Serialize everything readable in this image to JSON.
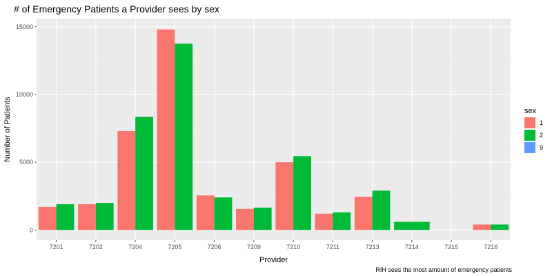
{
  "chart_data": {
    "type": "bar",
    "title": "# of Emergency Patients a Provider sees by sex",
    "xlabel": "Provider",
    "ylabel": "Number of Patients",
    "caption": "RIH sees the most amount of emergency patients",
    "categories": [
      "7201",
      "7202",
      "7204",
      "7205",
      "7206",
      "7209",
      "7210",
      "7211",
      "7213",
      "7214",
      "7215",
      "7216"
    ],
    "series": [
      {
        "name": "1",
        "color": "#F8766D",
        "values": [
          1700,
          1900,
          7300,
          14800,
          2550,
          1550,
          5000,
          1200,
          2450,
          0,
          0,
          400
        ]
      },
      {
        "name": "2",
        "color": "#00BA38",
        "values": [
          1900,
          2000,
          8350,
          13750,
          2400,
          1650,
          5450,
          1300,
          2900,
          600,
          0,
          400
        ]
      },
      {
        "name": "9",
        "color": "#619CFF",
        "values": [
          0,
          0,
          0,
          0,
          0,
          0,
          0,
          0,
          0,
          0,
          0,
          0
        ]
      }
    ],
    "yticks": [
      0,
      5000,
      10000,
      15000
    ],
    "ylim": [
      -750,
      15600
    ],
    "legend": {
      "title": "sex",
      "position": "right"
    },
    "grid": true,
    "panel_background": "#EBEBEB"
  }
}
